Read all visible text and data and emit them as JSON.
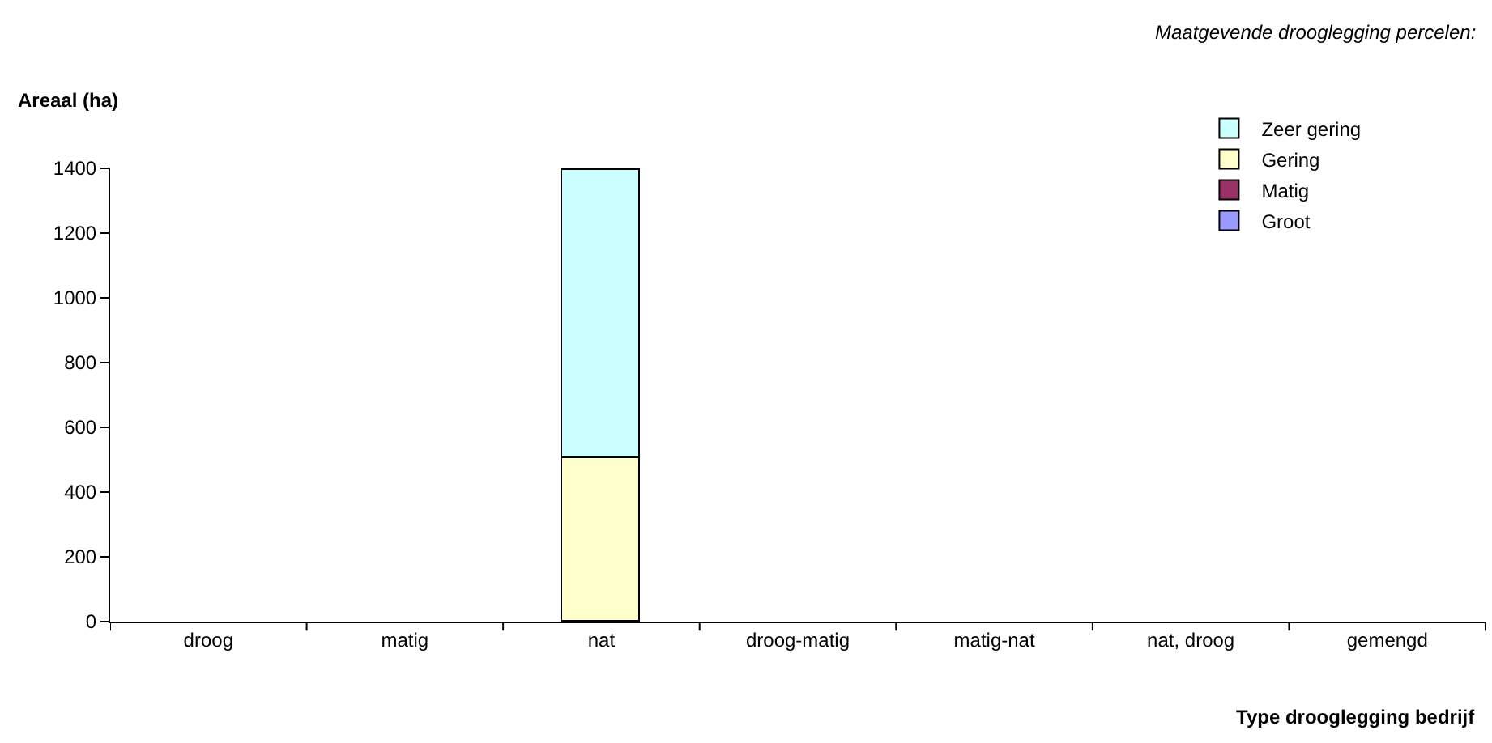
{
  "chart_data": {
    "type": "bar",
    "stacked": true,
    "annotations": [
      "Maatgevende drooglegging percelen:"
    ],
    "xlabel": "Type drooglegging bedrijf",
    "ylabel": "Areaal (ha)",
    "categories": [
      "droog",
      "matig",
      "nat",
      "droog-matig",
      "matig-nat",
      "nat, droog",
      "gemengd"
    ],
    "series": [
      {
        "name": "Groot",
        "color": "#9999ff",
        "values": [
          null,
          null,
          null,
          null,
          null,
          null,
          null
        ]
      },
      {
        "name": "Matig",
        "color": "#993366",
        "values": [
          null,
          null,
          null,
          null,
          null,
          null,
          null
        ]
      },
      {
        "name": "Gering",
        "color": "#ffffcc",
        "values": [
          null,
          null,
          505,
          null,
          null,
          null,
          null
        ]
      },
      {
        "name": "Zeer gering",
        "color": "#ccffff",
        "values": [
          null,
          null,
          890,
          null,
          null,
          null,
          null
        ]
      }
    ],
    "ylim": [
      0,
      1400
    ],
    "yticks": [
      0,
      200,
      400,
      600,
      800,
      1000,
      1200,
      1400
    ],
    "legend": "top right"
  }
}
